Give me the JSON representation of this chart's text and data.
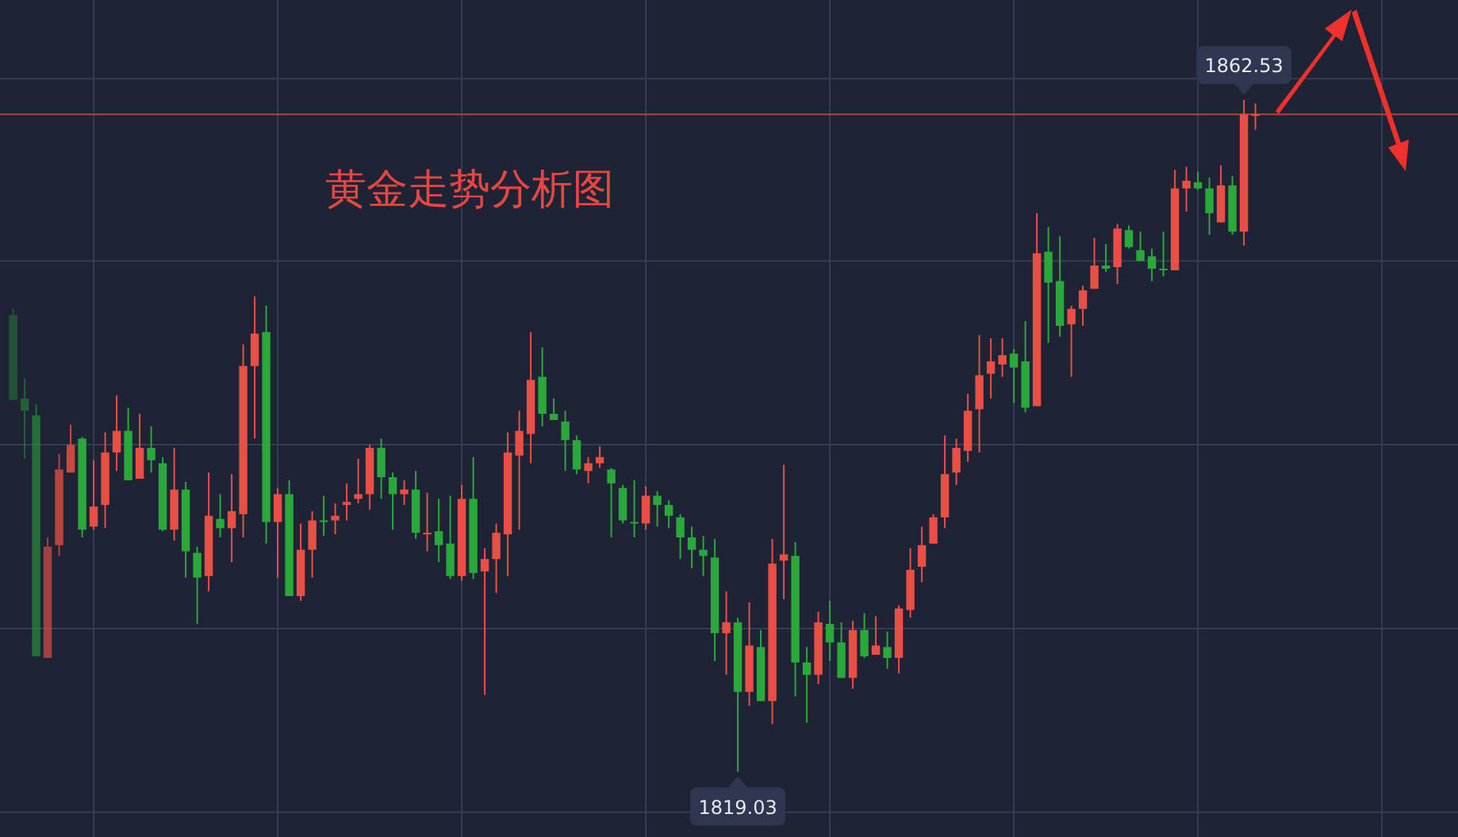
{
  "chart_data": {
    "type": "candlestick",
    "title": "黄金走势分析图",
    "categories": [
      null,
      null,
      null,
      null,
      null,
      null,
      null,
      null,
      null,
      null,
      null,
      null,
      null,
      null,
      null,
      null,
      null,
      null,
      null,
      null,
      null,
      null,
      null,
      null,
      null,
      null,
      null,
      null,
      null,
      null,
      null,
      null,
      null,
      null,
      null,
      null,
      null,
      null,
      null,
      null,
      null,
      null,
      null,
      null,
      null,
      null,
      null,
      null,
      null,
      null,
      null,
      null,
      null,
      null,
      null,
      null,
      null,
      null,
      null,
      null,
      null,
      null,
      null,
      null,
      null,
      null,
      null,
      null,
      null,
      null,
      null,
      null,
      null,
      null,
      null,
      null,
      null,
      null,
      null,
      null,
      null,
      null,
      null,
      null,
      null,
      null,
      null,
      null,
      null,
      null,
      null,
      null,
      null,
      null,
      null,
      null,
      null,
      null,
      null,
      null,
      null,
      null,
      null,
      null,
      null,
      null,
      null,
      null,
      null
    ],
    "ohlc": [
      [
        1848.6,
        1849.0,
        1843.1,
        1843.1
      ],
      [
        1843.2,
        1844.5,
        1839.3,
        1842.4
      ],
      [
        1842.1,
        1842.8,
        1826.5,
        1826.5
      ],
      [
        1826.4,
        1834.2,
        1826.4,
        1833.6
      ],
      [
        1833.7,
        1839.6,
        1833.0,
        1838.6
      ],
      [
        1838.4,
        1841.5,
        1838.4,
        1840.2
      ],
      [
        1840.6,
        1840.7,
        1834.2,
        1834.7
      ],
      [
        1834.9,
        1839.2,
        1834.7,
        1836.2
      ],
      [
        1836.3,
        1841.0,
        1834.8,
        1839.7
      ],
      [
        1839.7,
        1843.4,
        1838.5,
        1841.1
      ],
      [
        1841.1,
        1842.6,
        1837.9,
        1837.9
      ],
      [
        1838.0,
        1842.2,
        1838.0,
        1840.0
      ],
      [
        1840.0,
        1841.4,
        1838.4,
        1839.2
      ],
      [
        1839.0,
        1839.4,
        1834.6,
        1834.7
      ],
      [
        1834.7,
        1840.0,
        1834.0,
        1837.3
      ],
      [
        1837.3,
        1837.8,
        1831.6,
        1833.3
      ],
      [
        1833.2,
        1833.6,
        1828.6,
        1831.6
      ],
      [
        1831.7,
        1838.4,
        1830.7,
        1835.6
      ],
      [
        1835.4,
        1837.0,
        1834.2,
        1834.8
      ],
      [
        1834.8,
        1838.3,
        1832.6,
        1835.9
      ],
      [
        1835.7,
        1846.7,
        1834.2,
        1845.3
      ],
      [
        1845.3,
        1849.8,
        1840.6,
        1847.4
      ],
      [
        1847.5,
        1849.2,
        1833.8,
        1835.2
      ],
      [
        1835.2,
        1837.4,
        1831.6,
        1837.0
      ],
      [
        1837.0,
        1837.9,
        1830.4,
        1830.4
      ],
      [
        1830.4,
        1835.1,
        1830.1,
        1833.4
      ],
      [
        1833.4,
        1835.9,
        1831.6,
        1835.3
      ],
      [
        1835.3,
        1836.9,
        1834.3,
        1835.2
      ],
      [
        1835.3,
        1836.4,
        1834.4,
        1835.6
      ],
      [
        1836.3,
        1837.7,
        1835.3,
        1836.5
      ],
      [
        1836.7,
        1839.3,
        1836.4,
        1837.0
      ],
      [
        1837.0,
        1840.2,
        1836.0,
        1840.0
      ],
      [
        1840.0,
        1840.6,
        1836.7,
        1838.1
      ],
      [
        1838.1,
        1838.4,
        1834.7,
        1837.0
      ],
      [
        1837.0,
        1837.9,
        1836.3,
        1837.3
      ],
      [
        1837.3,
        1838.5,
        1834.1,
        1834.5
      ],
      [
        1834.4,
        1837.1,
        1833.3,
        1834.5
      ],
      [
        1834.6,
        1836.7,
        1832.6,
        1833.7
      ],
      [
        1833.8,
        1836.9,
        1831.5,
        1831.7
      ],
      [
        1831.7,
        1837.6,
        1831.4,
        1836.7
      ],
      [
        1836.7,
        1839.4,
        1831.5,
        1831.9
      ],
      [
        1832.0,
        1833.5,
        1824.0,
        1832.8
      ],
      [
        1832.8,
        1835.1,
        1830.6,
        1834.5
      ],
      [
        1834.4,
        1841.0,
        1831.7,
        1839.7
      ],
      [
        1839.5,
        1842.4,
        1834.7,
        1841.1
      ],
      [
        1840.9,
        1847.5,
        1839.0,
        1844.4
      ],
      [
        1844.6,
        1846.5,
        1841.4,
        1842.2
      ],
      [
        1842.2,
        1843.2,
        1841.8,
        1841.8
      ],
      [
        1841.7,
        1842.4,
        1838.5,
        1840.5
      ],
      [
        1840.5,
        1840.8,
        1838.3,
        1838.6
      ],
      [
        1838.5,
        1839.4,
        1837.7,
        1839.0
      ],
      [
        1839.0,
        1840.1,
        1838.7,
        1839.4
      ],
      [
        1838.6,
        1838.7,
        1834.2,
        1837.7
      ],
      [
        1837.4,
        1837.6,
        1835.1,
        1835.3
      ],
      [
        1835.2,
        1837.9,
        1834.2,
        1835.1
      ],
      [
        1835.1,
        1837.5,
        1834.7,
        1836.9
      ],
      [
        1836.9,
        1837.2,
        1834.9,
        1836.3
      ],
      [
        1836.3,
        1836.6,
        1834.8,
        1835.6
      ],
      [
        1835.5,
        1835.7,
        1832.8,
        1834.2
      ],
      [
        1834.2,
        1834.9,
        1832.2,
        1833.4
      ],
      [
        1833.4,
        1834.3,
        1831.7,
        1833.0
      ],
      [
        1832.9,
        1834.1,
        1826.2,
        1828.0
      ],
      [
        1828.0,
        1830.7,
        1825.3,
        1828.7
      ],
      [
        1828.7,
        1829.0,
        1819.03,
        1824.2
      ],
      [
        1824.2,
        1830.0,
        1823.3,
        1827.2
      ],
      [
        1827.1,
        1828.2,
        1823.6,
        1823.6
      ],
      [
        1823.6,
        1834.1,
        1822.1,
        1832.5
      ],
      [
        1832.7,
        1838.9,
        1830.2,
        1833.1
      ],
      [
        1833.0,
        1833.9,
        1823.9,
        1826.1
      ],
      [
        1826.1,
        1827.1,
        1822.2,
        1825.3
      ],
      [
        1825.3,
        1829.4,
        1824.7,
        1828.7
      ],
      [
        1828.6,
        1830.1,
        1826.2,
        1827.4
      ],
      [
        1827.4,
        1828.7,
        1825.1,
        1825.1
      ],
      [
        1825.1,
        1828.8,
        1824.4,
        1828.2
      ],
      [
        1828.2,
        1829.3,
        1826.4,
        1826.5
      ],
      [
        1826.6,
        1829.1,
        1826.6,
        1827.2
      ],
      [
        1827.1,
        1828.1,
        1825.7,
        1826.4
      ],
      [
        1826.4,
        1829.8,
        1825.4,
        1829.6
      ],
      [
        1829.5,
        1833.5,
        1829.0,
        1832.1
      ],
      [
        1832.3,
        1834.9,
        1831.3,
        1833.7
      ],
      [
        1833.8,
        1835.7,
        1833.8,
        1835.5
      ],
      [
        1835.5,
        1840.8,
        1834.8,
        1838.3
      ],
      [
        1838.4,
        1840.6,
        1837.6,
        1840.0
      ],
      [
        1839.8,
        1843.5,
        1839.1,
        1842.4
      ],
      [
        1842.5,
        1847.3,
        1839.7,
        1844.7
      ],
      [
        1844.8,
        1847.1,
        1843.2,
        1845.6
      ],
      [
        1845.4,
        1847.1,
        1844.6,
        1846.0
      ],
      [
        1846.1,
        1846.4,
        1842.9,
        1845.2
      ],
      [
        1845.6,
        1848.2,
        1842.3,
        1842.6
      ],
      [
        1842.7,
        1855.2,
        1842.7,
        1852.6
      ],
      [
        1852.7,
        1854.3,
        1846.8,
        1850.7
      ],
      [
        1850.8,
        1853.7,
        1847.2,
        1847.9
      ],
      [
        1848.0,
        1849.2,
        1844.6,
        1849.0
      ],
      [
        1849.0,
        1850.5,
        1847.9,
        1850.2
      ],
      [
        1850.3,
        1853.6,
        1850.3,
        1851.8
      ],
      [
        1851.8,
        1853.2,
        1851.4,
        1851.6
      ],
      [
        1851.7,
        1854.5,
        1850.6,
        1854.2
      ],
      [
        1854.1,
        1854.4,
        1852.9,
        1853.0
      ],
      [
        1852.8,
        1854.0,
        1852.1,
        1852.1
      ],
      [
        1852.4,
        1852.9,
        1850.8,
        1851.6
      ],
      [
        1851.6,
        1854.0,
        1851.1,
        1851.5
      ],
      [
        1851.5,
        1858.0,
        1851.5,
        1856.8
      ],
      [
        1856.8,
        1858.2,
        1855.3,
        1857.3
      ],
      [
        1857.2,
        1857.9,
        1856.7,
        1856.8
      ],
      [
        1856.8,
        1857.5,
        1853.8,
        1855.2
      ],
      [
        1854.6,
        1858.3,
        1854.6,
        1857.0
      ],
      [
        1857.0,
        1857.6,
        1853.8,
        1854.0
      ],
      [
        1854.0,
        1862.53,
        1853.1,
        1861.6
      ],
      [
        1861.5,
        1862.3,
        1860.6,
        1861.6
      ]
    ],
    "ylim": [
      1814.8,
      1869.0
    ],
    "yticks": [
      {
        "value": 1863.9,
        "label": null
      },
      {
        "value": 1852.1,
        "label": null
      },
      {
        "value": 1840.2,
        "label": null
      },
      {
        "value": 1828.3,
        "label": null
      },
      {
        "value": 1816.4,
        "label": null
      }
    ],
    "grid": true,
    "ref_lines": [
      {
        "axis": "y",
        "value": 1861.6,
        "color": "#b8403a"
      }
    ],
    "annotations": [
      {
        "text": "1862.53",
        "y": 1862.53
      },
      {
        "text": "1819.03",
        "y": 1819.03
      }
    ]
  }
}
